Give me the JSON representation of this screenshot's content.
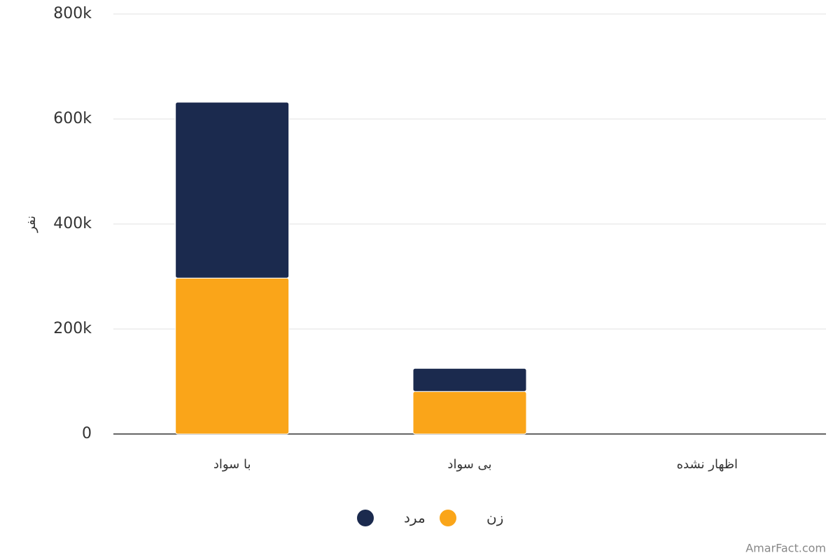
{
  "chart_data": {
    "type": "stacked_bar",
    "y_label": "نفر",
    "categories": [
      "با سواد",
      "بی سواد",
      "اظهار نشده"
    ],
    "series": [
      {
        "name": "زن",
        "color": "#faa519",
        "values": [
          297000,
          81000,
          0
        ]
      },
      {
        "name": "مرد",
        "color": "#1b2a4e",
        "values": [
          335000,
          44000,
          0
        ]
      }
    ],
    "ylim": [
      0,
      800000
    ],
    "yticks": [
      0,
      {
        "value": 200000,
        "label": "200k"
      },
      {
        "value": 400000,
        "label": "400k"
      },
      {
        "value": 600000,
        "label": "600k"
      },
      {
        "value": 800000,
        "label": "800k"
      }
    ],
    "grid": true,
    "watermark": "AmarFact.com"
  }
}
